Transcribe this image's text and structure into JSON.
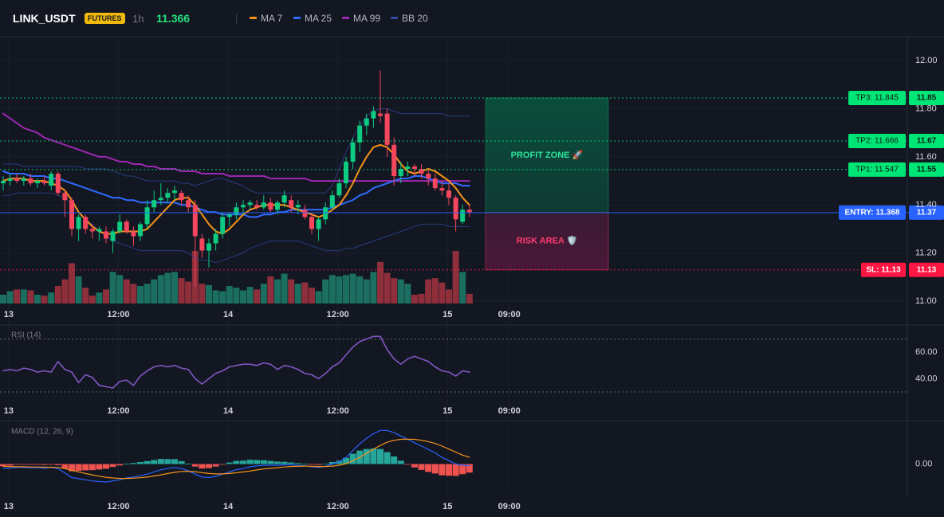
{
  "header": {
    "symbol": "LINK_USDT",
    "badge": "FUTURES",
    "timeframe": "1h",
    "price": "11.366",
    "legend": [
      {
        "label": "MA 7",
        "color": "#f7931a"
      },
      {
        "label": "MA 25",
        "color": "#2f6bff"
      },
      {
        "label": "MA 99",
        "color": "#9c27b0"
      },
      {
        "label": "BB 20",
        "color": "#2f4a9a"
      }
    ]
  },
  "colors": {
    "background": "#131722",
    "up": "#0ecb81",
    "down": "#f6465d",
    "vol_up": "#1b6f61",
    "vol_down": "#8e2f3b",
    "grid": "#1c2030",
    "axis_text": "#d1d4dc",
    "tp_color": "#00e676",
    "entry_color": "#2962ff",
    "sl_color": "#ff1744",
    "rsi_line": "#7e57c2",
    "macd_line": "#2962ff",
    "signal_line": "#f7931a",
    "hist_up": "#26a69a",
    "hist_down": "#ef5350"
  },
  "chart_data": [
    {
      "type": "line",
      "panel": "price",
      "y_ticks": [
        11.0,
        11.2,
        11.4,
        11.6,
        11.8,
        12.0
      ],
      "y_tick_labels": [
        "11.00",
        "11.20",
        "11.40",
        "11.60",
        "11.80",
        "12.00"
      ],
      "ylim": [
        10.99,
        12.1
      ],
      "x_ticks": [
        {
          "label": "13",
          "index": 0.8
        },
        {
          "label": "12:00",
          "index": 16.8
        },
        {
          "label": "14",
          "index": 32.8
        },
        {
          "label": "12:00",
          "index": 48.8
        },
        {
          "label": "15",
          "index": 64.8
        },
        {
          "label": "09:00",
          "index": 73.8
        }
      ],
      "candles": [
        [
          11.49,
          11.52,
          11.46,
          11.5
        ],
        [
          11.5,
          11.53,
          11.48,
          11.51
        ],
        [
          11.51,
          11.53,
          11.49,
          11.5
        ],
        [
          11.5,
          11.52,
          11.48,
          11.51
        ],
        [
          11.51,
          11.53,
          11.48,
          11.49
        ],
        [
          11.49,
          11.51,
          11.47,
          11.5
        ],
        [
          11.5,
          11.52,
          11.48,
          11.49
        ],
        [
          11.48,
          11.54,
          11.46,
          11.53
        ],
        [
          11.53,
          11.54,
          11.44,
          11.45
        ],
        [
          11.45,
          11.46,
          11.35,
          11.42
        ],
        [
          11.42,
          11.43,
          11.27,
          11.3
        ],
        [
          11.3,
          11.36,
          11.25,
          11.35
        ],
        [
          11.35,
          11.36,
          11.28,
          11.3
        ],
        [
          11.3,
          11.32,
          11.26,
          11.29
        ],
        [
          11.29,
          11.31,
          11.25,
          11.3
        ],
        [
          11.29,
          11.31,
          11.24,
          11.26
        ],
        [
          11.25,
          11.3,
          11.2,
          11.29
        ],
        [
          11.29,
          11.36,
          11.28,
          11.33
        ],
        [
          11.33,
          11.34,
          11.28,
          11.29
        ],
        [
          11.29,
          11.31,
          11.23,
          11.27
        ],
        [
          11.27,
          11.33,
          11.25,
          11.32
        ],
        [
          11.32,
          11.42,
          11.3,
          11.39
        ],
        [
          11.39,
          11.46,
          11.37,
          11.42
        ],
        [
          11.42,
          11.49,
          11.4,
          11.43
        ],
        [
          11.43,
          11.47,
          11.41,
          11.45
        ],
        [
          11.45,
          11.48,
          11.42,
          11.46
        ],
        [
          11.45,
          11.46,
          11.4,
          11.42
        ],
        [
          11.42,
          11.44,
          11.37,
          11.39
        ],
        [
          11.4,
          11.42,
          11.06,
          11.27
        ],
        [
          11.26,
          11.28,
          11.18,
          11.21
        ],
        [
          11.21,
          11.26,
          11.14,
          11.24
        ],
        [
          11.24,
          11.3,
          11.21,
          11.28
        ],
        [
          11.28,
          11.37,
          11.26,
          11.35
        ],
        [
          11.35,
          11.37,
          11.31,
          11.36
        ],
        [
          11.36,
          11.41,
          11.34,
          11.39
        ],
        [
          11.39,
          11.42,
          11.36,
          11.4
        ],
        [
          11.4,
          11.42,
          11.38,
          11.41
        ],
        [
          11.4,
          11.42,
          11.38,
          11.39
        ],
        [
          11.39,
          11.44,
          11.38,
          11.41
        ],
        [
          11.41,
          11.43,
          11.37,
          11.38
        ],
        [
          11.38,
          11.42,
          11.36,
          11.41
        ],
        [
          11.41,
          11.46,
          11.39,
          11.44
        ],
        [
          11.42,
          11.44,
          11.37,
          11.39
        ],
        [
          11.39,
          11.42,
          11.36,
          11.4
        ],
        [
          11.38,
          11.4,
          11.34,
          11.35
        ],
        [
          11.35,
          11.37,
          11.28,
          11.3
        ],
        [
          11.3,
          11.35,
          11.25,
          11.34
        ],
        [
          11.34,
          11.41,
          11.32,
          11.39
        ],
        [
          11.39,
          11.46,
          11.38,
          11.44
        ],
        [
          11.44,
          11.51,
          11.43,
          11.49
        ],
        [
          11.49,
          11.6,
          11.47,
          11.58
        ],
        [
          11.58,
          11.68,
          11.55,
          11.66
        ],
        [
          11.66,
          11.75,
          11.62,
          11.73
        ],
        [
          11.73,
          11.78,
          11.69,
          11.76
        ],
        [
          11.76,
          11.81,
          11.72,
          11.79
        ],
        [
          11.78,
          11.96,
          11.74,
          11.77
        ],
        [
          11.78,
          11.8,
          11.6,
          11.65
        ],
        [
          11.65,
          11.68,
          11.48,
          11.52
        ],
        [
          11.52,
          11.58,
          11.49,
          11.55
        ],
        [
          11.55,
          11.58,
          11.52,
          11.56
        ],
        [
          11.56,
          11.57,
          11.52,
          11.55
        ],
        [
          11.55,
          11.57,
          11.51,
          11.53
        ],
        [
          11.53,
          11.55,
          11.48,
          11.51
        ],
        [
          11.51,
          11.53,
          11.46,
          11.47
        ],
        [
          11.47,
          11.5,
          11.44,
          11.46
        ],
        [
          11.46,
          11.49,
          11.4,
          11.43
        ],
        [
          11.43,
          11.44,
          11.29,
          11.34
        ],
        [
          11.33,
          11.4,
          11.32,
          11.38
        ],
        [
          11.38,
          11.4,
          11.35,
          11.37
        ]
      ],
      "ma7": [
        11.5,
        11.51,
        11.51,
        11.51,
        11.5,
        11.5,
        11.5,
        11.49,
        11.48,
        11.46,
        11.42,
        11.37,
        11.34,
        11.31,
        11.29,
        11.28,
        11.28,
        11.29,
        11.29,
        11.29,
        11.29,
        11.3,
        11.33,
        11.36,
        11.39,
        11.42,
        11.43,
        11.43,
        11.4,
        11.36,
        11.32,
        11.29,
        11.28,
        11.3,
        11.33,
        11.36,
        11.38,
        11.39,
        11.4,
        11.4,
        11.4,
        11.4,
        11.39,
        11.38,
        11.37,
        11.36,
        11.35,
        11.36,
        11.38,
        11.4,
        11.44,
        11.49,
        11.55,
        11.6,
        11.64,
        11.65,
        11.64,
        11.61,
        11.57,
        11.54,
        11.53,
        11.54,
        11.55,
        11.54,
        11.52,
        11.5,
        11.47,
        11.43,
        11.4
      ],
      "ma25": [
        11.54,
        11.53,
        11.53,
        11.53,
        11.52,
        11.52,
        11.52,
        11.51,
        11.51,
        11.5,
        11.49,
        11.48,
        11.47,
        11.46,
        11.45,
        11.44,
        11.43,
        11.43,
        11.42,
        11.42,
        11.41,
        11.41,
        11.41,
        11.41,
        11.41,
        11.41,
        11.4,
        11.4,
        11.39,
        11.38,
        11.37,
        11.37,
        11.36,
        11.36,
        11.36,
        11.36,
        11.35,
        11.35,
        11.36,
        11.36,
        11.37,
        11.37,
        11.38,
        11.38,
        11.38,
        11.38,
        11.38,
        11.38,
        11.39,
        11.4,
        11.41,
        11.42,
        11.44,
        11.45,
        11.47,
        11.48,
        11.49,
        11.5,
        11.51,
        11.51,
        11.52,
        11.52,
        11.51,
        11.5,
        11.49,
        11.49,
        11.49,
        11.48,
        11.48
      ],
      "ma99": [
        11.78,
        11.76,
        11.74,
        11.72,
        11.71,
        11.7,
        11.68,
        11.67,
        11.66,
        11.65,
        11.64,
        11.63,
        11.62,
        11.61,
        11.6,
        11.6,
        11.59,
        11.58,
        11.58,
        11.57,
        11.57,
        11.56,
        11.56,
        11.55,
        11.55,
        11.55,
        11.54,
        11.54,
        11.54,
        11.53,
        11.53,
        11.53,
        11.53,
        11.52,
        11.52,
        11.52,
        11.52,
        11.52,
        11.52,
        11.51,
        11.51,
        11.51,
        11.51,
        11.51,
        11.51,
        11.5,
        11.5,
        11.5,
        11.5,
        11.5,
        11.5,
        11.5,
        11.5,
        11.5,
        11.5,
        11.5,
        11.5,
        11.5,
        11.5,
        11.5,
        11.5,
        11.5,
        11.5,
        11.5,
        11.5,
        11.5,
        11.5,
        11.5,
        11.5
      ],
      "bb_upper": [
        11.57,
        11.57,
        11.57,
        11.56,
        11.56,
        11.56,
        11.56,
        11.56,
        11.56,
        11.56,
        11.56,
        11.56,
        11.55,
        11.55,
        11.55,
        11.55,
        11.54,
        11.53,
        11.52,
        11.52,
        11.51,
        11.5,
        11.5,
        11.5,
        11.5,
        11.5,
        11.49,
        11.49,
        11.48,
        11.49,
        11.5,
        11.51,
        11.51,
        11.5,
        11.49,
        11.48,
        11.46,
        11.45,
        11.45,
        11.45,
        11.45,
        11.45,
        11.45,
        11.45,
        11.45,
        11.45,
        11.45,
        11.45,
        11.48,
        11.55,
        11.62,
        11.68,
        11.73,
        11.77,
        11.79,
        11.8,
        11.8,
        11.79,
        11.78,
        11.78,
        11.78,
        11.78,
        11.78,
        11.78,
        11.78,
        11.77,
        11.77,
        11.77,
        11.77
      ],
      "bb_lower": [
        11.44,
        11.44,
        11.45,
        11.45,
        11.45,
        11.45,
        11.45,
        11.45,
        11.44,
        11.43,
        11.4,
        11.37,
        11.34,
        11.32,
        11.29,
        11.27,
        11.25,
        11.24,
        11.23,
        11.22,
        11.21,
        11.21,
        11.21,
        11.21,
        11.21,
        11.21,
        11.21,
        11.2,
        11.18,
        11.17,
        11.17,
        11.16,
        11.17,
        11.18,
        11.19,
        11.2,
        11.22,
        11.23,
        11.24,
        11.25,
        11.25,
        11.25,
        11.25,
        11.25,
        11.24,
        11.23,
        11.22,
        11.21,
        11.21,
        11.21,
        11.22,
        11.22,
        11.23,
        11.24,
        11.25,
        11.26,
        11.27,
        11.28,
        11.29,
        11.3,
        11.31,
        11.32,
        11.32,
        11.32,
        11.32,
        11.31,
        11.31,
        11.31,
        11.31
      ],
      "volume": [
        0.2,
        0.28,
        0.32,
        0.32,
        0.3,
        0.2,
        0.18,
        0.25,
        0.4,
        0.55,
        0.92,
        0.62,
        0.36,
        0.18,
        0.25,
        0.32,
        0.72,
        0.65,
        0.55,
        0.45,
        0.4,
        0.45,
        0.55,
        0.65,
        0.7,
        0.72,
        0.58,
        0.5,
        1.2,
        0.45,
        0.42,
        0.3,
        0.28,
        0.4,
        0.36,
        0.3,
        0.38,
        0.32,
        0.45,
        0.62,
        0.55,
        0.68,
        0.55,
        0.45,
        0.48,
        0.36,
        0.28,
        0.55,
        0.65,
        0.62,
        0.65,
        0.68,
        0.62,
        0.55,
        0.72,
        0.95,
        0.7,
        0.58,
        0.55,
        0.45,
        0.2,
        0.22,
        0.55,
        0.58,
        0.48,
        0.32,
        1.2,
        0.72,
        0.22
      ],
      "levels": [
        {
          "label": "TP3: 11.845",
          "price_label": "11.85",
          "value": 11.845,
          "kind": "tp"
        },
        {
          "label": "TP2: 11.666",
          "price_label": "11.67",
          "value": 11.666,
          "kind": "tp"
        },
        {
          "label": "TP1: 11.547",
          "price_label": "11.55",
          "value": 11.547,
          "kind": "tp"
        },
        {
          "label": "ENTRY: 11.368",
          "price_label": "11.37",
          "value": 11.368,
          "kind": "entry"
        },
        {
          "label": "SL: 11.13",
          "price_label": "11.13",
          "value": 11.13,
          "kind": "sl"
        }
      ],
      "zones": {
        "profit_label": "PROFIT ZONE 🚀",
        "risk_label": "RISK AREA 🛡️",
        "profit_top": 11.845,
        "profit_bottom": 11.368,
        "risk_bottom": 11.13
      }
    },
    {
      "type": "line",
      "panel": "rsi",
      "title": "RSI (14)",
      "y_ticks": [
        40,
        60
      ],
      "y_tick_labels": [
        "40.00",
        "60.00"
      ],
      "ylim": [
        24,
        80
      ],
      "bands": [
        70,
        30
      ],
      "values": [
        46,
        47,
        46,
        48,
        47,
        45,
        46,
        45,
        53,
        47,
        45,
        37,
        43,
        41,
        35,
        34,
        33,
        38,
        39,
        35,
        42,
        46,
        49,
        50,
        49,
        50,
        48,
        47,
        40,
        36,
        40,
        44,
        46,
        49,
        50,
        51,
        51,
        50,
        52,
        51,
        47,
        50,
        49,
        47,
        44,
        43,
        40,
        44,
        49,
        52,
        58,
        64,
        68,
        70,
        72,
        72,
        62,
        55,
        51,
        55,
        57,
        55,
        53,
        49,
        46,
        45,
        42,
        46,
        45
      ]
    },
    {
      "type": "line",
      "panel": "macd",
      "title": "MACD (12, 26, 9)",
      "y_ticks": [
        0
      ],
      "y_tick_labels": [
        "0.00"
      ],
      "ylim": [
        -0.14,
        0.19
      ],
      "macd": [
        -0.02,
        -0.018,
        -0.015,
        -0.015,
        -0.016,
        -0.016,
        -0.018,
        -0.015,
        -0.02,
        -0.04,
        -0.06,
        -0.065,
        -0.07,
        -0.075,
        -0.078,
        -0.08,
        -0.075,
        -0.07,
        -0.062,
        -0.058,
        -0.052,
        -0.045,
        -0.035,
        -0.025,
        -0.02,
        -0.015,
        -0.02,
        -0.03,
        -0.045,
        -0.058,
        -0.06,
        -0.055,
        -0.045,
        -0.035,
        -0.025,
        -0.02,
        -0.012,
        -0.008,
        -0.005,
        -0.005,
        -0.005,
        -0.003,
        -0.004,
        -0.006,
        -0.008,
        -0.012,
        -0.015,
        -0.01,
        0.0,
        0.01,
        0.03,
        0.06,
        0.09,
        0.115,
        0.135,
        0.15,
        0.15,
        0.14,
        0.125,
        0.11,
        0.095,
        0.08,
        0.065,
        0.05,
        0.03,
        0.015,
        0.0,
        -0.005,
        -0.008
      ],
      "signal": [
        -0.01,
        -0.011,
        -0.012,
        -0.012,
        -0.013,
        -0.013,
        -0.014,
        -0.014,
        -0.015,
        -0.02,
        -0.028,
        -0.035,
        -0.042,
        -0.048,
        -0.054,
        -0.059,
        -0.062,
        -0.064,
        -0.064,
        -0.063,
        -0.061,
        -0.058,
        -0.053,
        -0.048,
        -0.042,
        -0.037,
        -0.033,
        -0.032,
        -0.034,
        -0.038,
        -0.042,
        -0.044,
        -0.044,
        -0.042,
        -0.039,
        -0.035,
        -0.031,
        -0.026,
        -0.022,
        -0.019,
        -0.016,
        -0.013,
        -0.011,
        -0.01,
        -0.009,
        -0.01,
        -0.011,
        -0.011,
        -0.009,
        -0.005,
        0.002,
        0.014,
        0.03,
        0.048,
        0.066,
        0.083,
        0.097,
        0.106,
        0.11,
        0.111,
        0.11,
        0.106,
        0.1,
        0.092,
        0.08,
        0.067,
        0.053,
        0.04,
        0.03
      ],
      "histogram": [
        -0.01,
        -0.007,
        -0.003,
        -0.003,
        -0.003,
        -0.003,
        -0.004,
        -0.001,
        -0.005,
        -0.02,
        -0.032,
        -0.03,
        -0.028,
        -0.027,
        -0.024,
        -0.021,
        -0.013,
        -0.006,
        0.002,
        0.005,
        0.009,
        0.013,
        0.018,
        0.023,
        0.022,
        0.022,
        0.013,
        0.002,
        -0.011,
        -0.02,
        -0.018,
        -0.011,
        -0.001,
        0.007,
        0.014,
        0.015,
        0.019,
        0.018,
        0.017,
        0.014,
        0.011,
        0.01,
        0.007,
        0.004,
        0.001,
        -0.002,
        -0.004,
        0.001,
        0.009,
        0.015,
        0.028,
        0.046,
        0.06,
        0.067,
        0.069,
        0.067,
        0.053,
        0.034,
        0.015,
        -0.001,
        -0.015,
        -0.026,
        -0.035,
        -0.042,
        -0.05,
        -0.052,
        -0.053,
        -0.045,
        -0.038
      ]
    }
  ]
}
